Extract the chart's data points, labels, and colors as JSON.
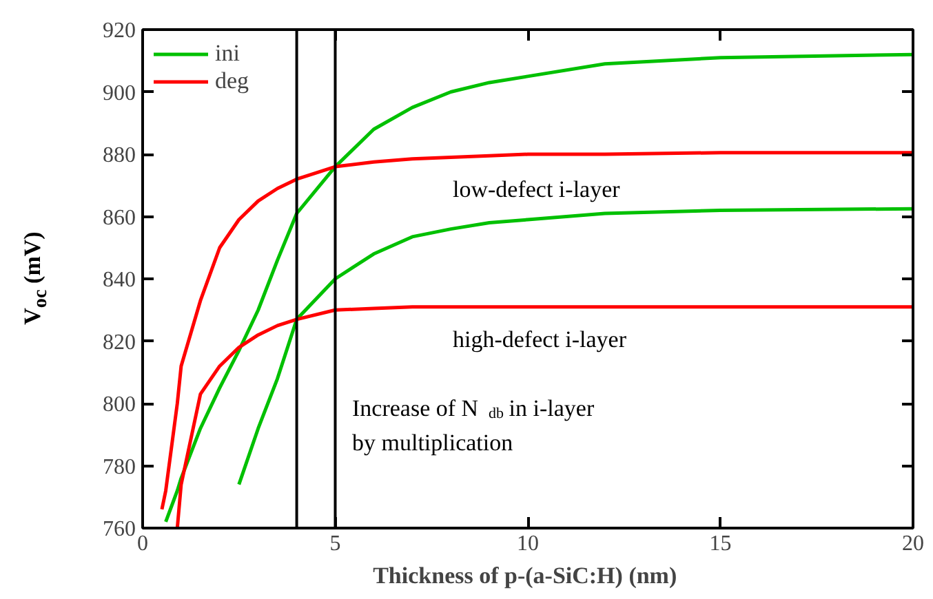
{
  "chart_data": {
    "type": "line",
    "xlabel": "Thickness of p-(a-SiC:H)  (nm)",
    "ylabel": "V$_{oc}$ (mV)",
    "x": [
      0.5,
      0.6,
      0.9,
      1,
      1.5,
      2,
      2.5,
      3,
      3.5,
      4,
      5,
      6,
      7,
      8,
      9,
      10,
      12,
      15,
      20
    ],
    "series": [
      {
        "name": "ini",
        "color": "#00c000",
        "values": [
          null,
          762,
          772,
          776,
          792,
          805,
          817,
          830,
          846,
          861,
          876,
          888,
          895,
          900,
          903,
          905,
          909,
          911,
          912
        ]
      },
      {
        "name": "deg",
        "color": "#ff0000",
        "values": [
          766,
          772,
          800,
          812,
          833,
          850,
          859,
          865,
          869,
          872,
          876,
          877.5,
          878.5,
          879,
          879.5,
          880,
          880,
          880.5,
          880.5
        ]
      },
      {
        "color": "#00c000",
        "values": [
          null,
          null,
          null,
          null,
          null,
          null,
          774,
          792,
          808,
          827,
          840,
          848,
          853.5,
          856,
          858,
          859,
          861,
          862,
          862.5
        ]
      },
      {
        "color": "#ff0000",
        "values": [
          null,
          null,
          760,
          774,
          803,
          812,
          818,
          822,
          825,
          827,
          830,
          830.5,
          831,
          831,
          831,
          831,
          831,
          831,
          831
        ]
      }
    ],
    "xlim": [
      0,
      20
    ],
    "xticks": [
      0,
      5,
      10,
      15,
      20
    ],
    "ylim": [
      760,
      920
    ],
    "yticks": [
      760,
      780,
      800,
      820,
      840,
      860,
      880,
      900,
      920
    ],
    "ref_lines": [
      {
        "axis": "x",
        "value": 4,
        "color": "#000000"
      },
      {
        "axis": "x",
        "value": 5,
        "color": "#000000"
      }
    ],
    "annotations": [
      "low-defect i-layer",
      "high-defect i-layer",
      "Increase of N$_{db}$ in i-layer",
      "by multiplication"
    ],
    "legend": "top left",
    "grid": false
  }
}
